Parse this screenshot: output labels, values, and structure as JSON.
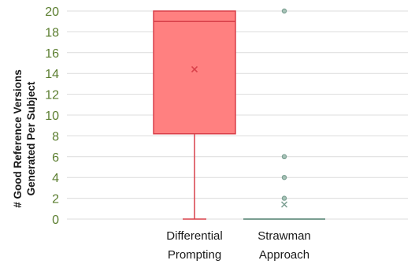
{
  "chart_data": {
    "type": "box",
    "ylabel_lines": [
      "# Good Reference Versions",
      "Generated Per Subject"
    ],
    "ylim": [
      0,
      20
    ],
    "yticks": [
      0,
      2,
      4,
      6,
      8,
      10,
      12,
      14,
      16,
      18,
      20
    ],
    "categories": [
      {
        "id": "differential",
        "label_lines": [
          "Differential",
          "Prompting"
        ]
      },
      {
        "id": "strawman",
        "label_lines": [
          "Strawman",
          "Approach"
        ]
      }
    ],
    "boxes": [
      {
        "category": "differential",
        "min": 0,
        "q1": 8.2,
        "median": 19,
        "q3": 20,
        "max": 20,
        "mean": 14.4,
        "outliers": [],
        "fill": "#ff8080",
        "stroke": "#d9404a"
      },
      {
        "category": "strawman",
        "min": 0,
        "q1": 0,
        "median": 0,
        "q3": 0,
        "max": 0,
        "mean": 1.4,
        "outliers": [
          2,
          4,
          6,
          20
        ],
        "fill": "#a8c4b8",
        "stroke": "#7a9e91"
      }
    ],
    "grid": true,
    "colors": {
      "grid": "#dcdcdc",
      "tick_y": "#5a7d2e",
      "mean_marker_1": "#d9404a",
      "mean_marker_2": "#7a9e91"
    }
  }
}
